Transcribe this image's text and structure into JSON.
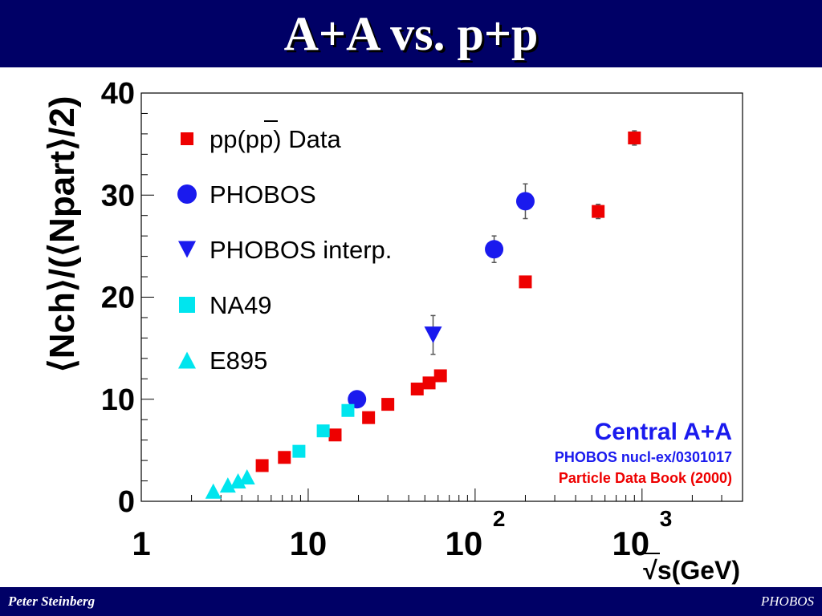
{
  "slide": {
    "title": "A+A vs. p+p",
    "footer_left": "Peter Steinberg",
    "footer_right": "PHOBOS"
  },
  "colors": {
    "header_bg": "#000066",
    "pp": "#ee0000",
    "phobos": "#1a1aee",
    "na49": "#00e5ee",
    "e895": "#00e5ee",
    "annotation_blue": "#1a1aee",
    "annotation_red": "#ee0000"
  },
  "chart_data": {
    "type": "scatter",
    "x_scale": "log",
    "xlim": [
      1,
      4000
    ],
    "ylim": [
      0,
      40
    ],
    "xlabel": "√s(GeV)",
    "ylabel": "⟨Nch⟩/(⟨Npart⟩/2)",
    "x_ticks": [
      {
        "label": "1",
        "value": 1
      },
      {
        "label": "10",
        "value": 10
      },
      {
        "label": "10",
        "sup": "2",
        "value": 100
      },
      {
        "label": "10",
        "sup": "3",
        "value": 1000
      }
    ],
    "y_ticks": [
      {
        "label": "0",
        "value": 0
      },
      {
        "label": "10",
        "value": 10
      },
      {
        "label": "20",
        "value": 20
      },
      {
        "label": "30",
        "value": 30
      },
      {
        "label": "40",
        "value": 40
      }
    ],
    "legend": {
      "position": "top-left",
      "entries": [
        {
          "label": "pp(pp) Data",
          "marker": "square",
          "series": "pp"
        },
        {
          "label": "PHOBOS",
          "marker": "circle",
          "series": "phobos"
        },
        {
          "label": "PHOBOS interp.",
          "marker": "triangle-down",
          "series": "phobos_interp"
        },
        {
          "label": "NA49",
          "marker": "square",
          "series": "na49"
        },
        {
          "label": "E895",
          "marker": "triangle-up",
          "series": "e895"
        }
      ]
    },
    "annotations": [
      {
        "text": "Central A+A",
        "color": "#1a1aee"
      },
      {
        "text": "PHOBOS nucl-ex/0301017",
        "color": "#1a1aee"
      },
      {
        "text": "Particle Data Book (2000)",
        "color": "#ee0000"
      }
    ],
    "series": [
      {
        "id": "pp",
        "marker": "square",
        "color": "#ee0000",
        "points": [
          {
            "x": 5.3,
            "y": 3.5
          },
          {
            "x": 7.2,
            "y": 4.3
          },
          {
            "x": 14.5,
            "y": 6.5
          },
          {
            "x": 23,
            "y": 8.2
          },
          {
            "x": 30,
            "y": 9.5
          },
          {
            "x": 45,
            "y": 11
          },
          {
            "x": 53,
            "y": 11.6
          },
          {
            "x": 62,
            "y": 12.3
          },
          {
            "x": 200,
            "y": 21.5
          },
          {
            "x": 546,
            "y": 28.4,
            "err": 0.7
          },
          {
            "x": 900,
            "y": 35.6,
            "err": 0.7
          }
        ]
      },
      {
        "id": "phobos",
        "marker": "circle",
        "color": "#1a1aee",
        "points": [
          {
            "x": 19.6,
            "y": 10
          },
          {
            "x": 130,
            "y": 24.7,
            "err": 1.3
          },
          {
            "x": 200,
            "y": 29.4,
            "err": 1.7
          }
        ]
      },
      {
        "id": "phobos_interp",
        "marker": "triangle-down",
        "color": "#1a1aee",
        "points": [
          {
            "x": 56,
            "y": 16.3,
            "err": 1.9
          }
        ]
      },
      {
        "id": "na49",
        "marker": "square",
        "color": "#00e5ee",
        "points": [
          {
            "x": 8.8,
            "y": 4.9
          },
          {
            "x": 12.3,
            "y": 6.9
          },
          {
            "x": 17.3,
            "y": 8.9
          }
        ]
      },
      {
        "id": "e895",
        "marker": "triangle-up",
        "color": "#00e5ee",
        "points": [
          {
            "x": 2.7,
            "y": 1.0
          },
          {
            "x": 3.3,
            "y": 1.6
          },
          {
            "x": 3.8,
            "y": 2.0
          },
          {
            "x": 4.3,
            "y": 2.4
          }
        ]
      }
    ]
  }
}
